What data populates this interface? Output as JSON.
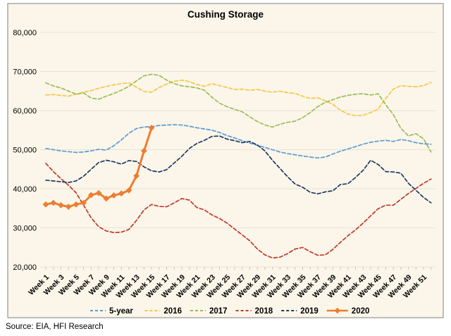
{
  "title": "Cushing Storage",
  "source_note": "Source: EIA, HFI Research",
  "colors": {
    "background": "#FBF6E9",
    "border": "#808080",
    "gridline": "#E7E3D6",
    "tick": "#C9C5B9",
    "text": "#000000"
  },
  "chart_data": {
    "type": "line",
    "title": "Cushing Storage",
    "xlabel": "",
    "ylabel": "",
    "grid": true,
    "legend_position": "bottom",
    "ylim": [
      20000,
      80000
    ],
    "y_ticks": [
      20000,
      30000,
      40000,
      50000,
      60000,
      70000,
      80000
    ],
    "y_tick_labels": [
      "20,000",
      "30,000",
      "40,000",
      "50,000",
      "60,000",
      "70,000",
      "80,000"
    ],
    "x_range": [
      1,
      52
    ],
    "x_tick_labels": [
      "Week 1",
      "Week 3",
      "Week 5",
      "Week 7",
      "Week 9",
      "Week 11",
      "Week 13",
      "Week 15",
      "Week 17",
      "Week 19",
      "Week 21",
      "Week 23",
      "Week 25",
      "Week 27",
      "Week 29",
      "Week 31",
      "Week 33",
      "Week 35",
      "Week 37",
      "Week 39",
      "Week 41",
      "Week 43",
      "Week 45",
      "Week 47",
      "Week 49",
      "Week 51"
    ],
    "series": [
      {
        "name": "5-year",
        "color": "#5B9BD5",
        "dash": true,
        "marker": "none",
        "start_week": 1,
        "values": [
          50300,
          50000,
          49700,
          49500,
          49300,
          49400,
          49700,
          50100,
          49900,
          51000,
          52500,
          54200,
          55400,
          55800,
          55900,
          56200,
          56300,
          56400,
          56300,
          56000,
          55600,
          55300,
          55000,
          54400,
          53600,
          53000,
          52300,
          51700,
          51100,
          50600,
          50000,
          49400,
          49000,
          48700,
          48400,
          48100,
          47900,
          48100,
          48900,
          49600,
          50200,
          50800,
          51400,
          51900,
          52200,
          52400,
          52100,
          52600,
          52300,
          51800,
          51500,
          51400
        ]
      },
      {
        "name": "2016",
        "color": "#F6C64A",
        "dash": true,
        "marker": "none",
        "start_week": 1,
        "values": [
          64000,
          64100,
          63900,
          63700,
          64200,
          64700,
          65100,
          65700,
          66200,
          66600,
          66900,
          67100,
          66000,
          64900,
          64700,
          65900,
          66800,
          67500,
          67800,
          67400,
          66700,
          66200,
          66900,
          66400,
          65900,
          65400,
          65500,
          65200,
          65400,
          65000,
          64700,
          65000,
          64600,
          64400,
          63700,
          63100,
          63300,
          62500,
          61600,
          60100,
          59100,
          58700,
          58800,
          59500,
          60400,
          63100,
          65500,
          66400,
          66200,
          66100,
          66400,
          67200
        ]
      },
      {
        "name": "2017",
        "color": "#9BBB59",
        "dash": true,
        "marker": "none",
        "start_week": 1,
        "values": [
          67100,
          66300,
          65800,
          65000,
          64200,
          64500,
          63200,
          62900,
          63700,
          64400,
          65200,
          66200,
          67600,
          68900,
          69300,
          69000,
          67800,
          66900,
          66300,
          66100,
          65800,
          65200,
          63400,
          61900,
          61000,
          60300,
          59700,
          58400,
          57200,
          56300,
          55800,
          56500,
          57000,
          57300,
          58200,
          59500,
          61000,
          62100,
          62800,
          63500,
          63900,
          64200,
          64300,
          64000,
          64300,
          61500,
          59000,
          55500,
          53500,
          54100,
          52800,
          49400
        ]
      },
      {
        "name": "2018",
        "color": "#C0392B",
        "dash": true,
        "marker": "none",
        "start_week": 1,
        "values": [
          46500,
          44400,
          42600,
          40900,
          39000,
          35800,
          32600,
          30300,
          29200,
          28800,
          28900,
          29600,
          31900,
          34600,
          36000,
          35500,
          35400,
          36400,
          37500,
          37100,
          35200,
          34600,
          33300,
          32400,
          31200,
          29700,
          28200,
          26700,
          24600,
          23100,
          22300,
          22500,
          23400,
          24600,
          25000,
          23900,
          23000,
          23100,
          24500,
          26300,
          28000,
          29500,
          31200,
          33100,
          34900,
          35800,
          35800,
          37300,
          38800,
          40100,
          41400,
          42500
        ]
      },
      {
        "name": "2019",
        "color": "#1F3864",
        "dash": true,
        "marker": "none",
        "start_week": 1,
        "values": [
          42200,
          42000,
          41800,
          41600,
          42000,
          43200,
          45000,
          46700,
          47300,
          46900,
          46300,
          47200,
          47000,
          45600,
          44600,
          44300,
          44900,
          46600,
          48300,
          50300,
          51600,
          52400,
          53400,
          53500,
          52700,
          52300,
          51800,
          52100,
          51200,
          49700,
          47300,
          45200,
          43100,
          41200,
          40400,
          39100,
          38700,
          39200,
          39500,
          41100,
          41300,
          42900,
          44700,
          47300,
          46200,
          44400,
          44300,
          44000,
          41400,
          39600,
          37800,
          36400
        ]
      },
      {
        "name": "2020",
        "color": "#ED7D31",
        "dash": false,
        "marker": "diamond",
        "start_week": 1,
        "values": [
          36000,
          36400,
          35800,
          35400,
          36000,
          36400,
          38400,
          38900,
          37500,
          38300,
          38800,
          39600,
          43300,
          49700,
          55600
        ]
      }
    ]
  }
}
